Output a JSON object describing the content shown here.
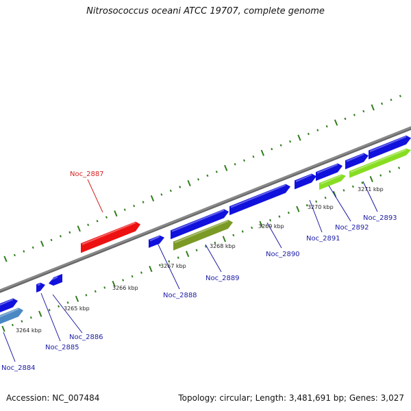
{
  "title": "Nitrosococcus oceani ATCC 19707, complete genome",
  "footer": {
    "accession": "Accession: NC_007484",
    "topology": "Topology: circular; Length: 3,481,691 bp; Genes: 3,027"
  },
  "colors": {
    "backbone": "#8a8a8a",
    "tick": "#2f7d1c",
    "gene_blue": "#1111dd",
    "gene_red": "#ee1111",
    "gene_olive": "#7a9a25",
    "gene_lime": "#88dd22",
    "gene_steel": "#4a88c4",
    "label_blue": "#1a1aa6",
    "label_red": "#d42020"
  },
  "kbp_labels": [
    "3264 kbp",
    "3265 kbp",
    "3266 kbp",
    "3267 kbp",
    "3268 kbp",
    "3269 kbp",
    "3270 kbp",
    "3271 kbp"
  ],
  "genes": [
    {
      "id": "Noc_2884",
      "color": "gene_steel",
      "label_color": "label_blue"
    },
    {
      "id": "Noc_2885",
      "color": "gene_blue",
      "label_color": "label_blue"
    },
    {
      "id": "Noc_2886",
      "color": "gene_blue",
      "label_color": "label_blue"
    },
    {
      "id": "Noc_2887",
      "color": "gene_red",
      "label_color": "label_red"
    },
    {
      "id": "Noc_2888",
      "color": "gene_blue",
      "label_color": "label_blue"
    },
    {
      "id": "Noc_2889",
      "color": "gene_olive",
      "label_color": "label_blue"
    },
    {
      "id": "Noc_2890",
      "color": "gene_blue",
      "label_color": "label_blue"
    },
    {
      "id": "Noc_2891",
      "color": "gene_blue",
      "label_color": "label_blue"
    },
    {
      "id": "Noc_2892",
      "color": "gene_lime",
      "label_color": "label_blue"
    },
    {
      "id": "Noc_2893",
      "color": "gene_lime",
      "label_color": "label_blue"
    }
  ]
}
